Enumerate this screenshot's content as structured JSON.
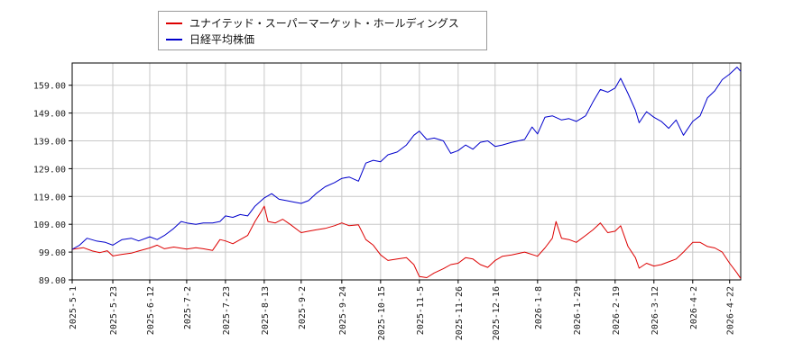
{
  "chart_data": {
    "type": "line",
    "title": "",
    "xlabel": "",
    "ylabel": "",
    "x_ticks": [
      "2025-5-1",
      "2025-5-23",
      "2025-6-12",
      "2025-7-2",
      "2025-7-23",
      "2025-8-13",
      "2025-9-2",
      "2025-9-24",
      "2025-10-15",
      "2025-11-5",
      "2025-11-26",
      "2025-12-16",
      "2026-1-8",
      "2026-1-29",
      "2026-2-19",
      "2026-3-12",
      "2026-4-2",
      "2026-4-22"
    ],
    "y_ticks": [
      "89.00",
      "99.00",
      "109.00",
      "119.00",
      "129.00",
      "139.00",
      "149.00",
      "159.00"
    ],
    "ylim": [
      89,
      167
    ],
    "grid": true,
    "legend_position": "top-left",
    "series": [
      {
        "name": "ユナイテッド・スーパーマーケット・ホールディングス",
        "color": "#dd0000",
        "values": [
          [
            "2025-5-1",
            100
          ],
          [
            "2025-5-7",
            100.6
          ],
          [
            "2025-5-12",
            99.4
          ],
          [
            "2025-5-16",
            98.8
          ],
          [
            "2025-5-20",
            99.5
          ],
          [
            "2025-5-23",
            97.6
          ],
          [
            "2025-5-28",
            98.2
          ],
          [
            "2025-6-2",
            98.6
          ],
          [
            "2025-6-6",
            99.4
          ],
          [
            "2025-6-12",
            100.5
          ],
          [
            "2025-6-16",
            101.5
          ],
          [
            "2025-6-20",
            100.2
          ],
          [
            "2025-6-25",
            100.8
          ],
          [
            "2025-7-2",
            100.1
          ],
          [
            "2025-7-7",
            100.6
          ],
          [
            "2025-7-11",
            100.2
          ],
          [
            "2025-7-16",
            99.6
          ],
          [
            "2025-7-20",
            103.5
          ],
          [
            "2025-7-23",
            103
          ],
          [
            "2025-7-27",
            102
          ],
          [
            "2025-7-31",
            103.5
          ],
          [
            "2025-8-4",
            105
          ],
          [
            "2025-8-8",
            110
          ],
          [
            "2025-8-11",
            113.2
          ],
          [
            "2025-8-13",
            115.5
          ],
          [
            "2025-8-15",
            110
          ],
          [
            "2025-8-19",
            109.5
          ],
          [
            "2025-8-23",
            110.8
          ],
          [
            "2025-8-27",
            109
          ],
          [
            "2025-9-2",
            106
          ],
          [
            "2025-9-6",
            106.5
          ],
          [
            "2025-9-10",
            107
          ],
          [
            "2025-9-15",
            107.5
          ],
          [
            "2025-9-20",
            108.5
          ],
          [
            "2025-9-24",
            109.5
          ],
          [
            "2025-9-28",
            108.5
          ],
          [
            "2025-10-3",
            108.8
          ],
          [
            "2025-10-7",
            103.5
          ],
          [
            "2025-10-11",
            101.5
          ],
          [
            "2025-10-15",
            98
          ],
          [
            "2025-10-19",
            96
          ],
          [
            "2025-10-24",
            96.5
          ],
          [
            "2025-10-29",
            97
          ],
          [
            "2025-11-2",
            94.5
          ],
          [
            "2025-11-5",
            90.2
          ],
          [
            "2025-11-9",
            89.8
          ],
          [
            "2025-11-13",
            91.5
          ],
          [
            "2025-11-18",
            93
          ],
          [
            "2025-11-22",
            94.5
          ],
          [
            "2025-11-26",
            95
          ],
          [
            "2025-11-30",
            97
          ],
          [
            "2025-12-4",
            96.5
          ],
          [
            "2025-12-8",
            94.5
          ],
          [
            "2025-12-12",
            93.5
          ],
          [
            "2025-12-16",
            96
          ],
          [
            "2025-12-20",
            97.5
          ],
          [
            "2025-12-25",
            98
          ],
          [
            "2026-1-1",
            99
          ],
          [
            "2026-1-8",
            97.5
          ],
          [
            "2026-1-12",
            100.5
          ],
          [
            "2026-1-16",
            104
          ],
          [
            "2026-1-18",
            110
          ],
          [
            "2026-1-21",
            104
          ],
          [
            "2026-1-25",
            103.5
          ],
          [
            "2026-1-29",
            102.5
          ],
          [
            "2026-2-3",
            105
          ],
          [
            "2026-2-7",
            107
          ],
          [
            "2026-2-11",
            109.5
          ],
          [
            "2026-2-15",
            106
          ],
          [
            "2026-2-19",
            106.5
          ],
          [
            "2026-2-22",
            108.5
          ],
          [
            "2026-2-26",
            101
          ],
          [
            "2026-3-2",
            97
          ],
          [
            "2026-3-4",
            93.2
          ],
          [
            "2026-3-8",
            95
          ],
          [
            "2026-3-12",
            94
          ],
          [
            "2026-3-16",
            94.5
          ],
          [
            "2026-3-20",
            95.5
          ],
          [
            "2026-3-24",
            96.5
          ],
          [
            "2026-3-28",
            99
          ],
          [
            "2026-4-2",
            102.5
          ],
          [
            "2026-4-6",
            102.5
          ],
          [
            "2026-4-10",
            101
          ],
          [
            "2026-4-14",
            100.5
          ],
          [
            "2026-4-18",
            99
          ],
          [
            "2026-4-22",
            95
          ],
          [
            "2026-4-26",
            91.5
          ],
          [
            "2026-4-28",
            89.5
          ]
        ]
      },
      {
        "name": "日経平均株価",
        "color": "#0000cc",
        "values": [
          [
            "2025-5-1",
            100
          ],
          [
            "2025-5-5",
            101.5
          ],
          [
            "2025-5-9",
            104
          ],
          [
            "2025-5-14",
            103
          ],
          [
            "2025-5-19",
            102.5
          ],
          [
            "2025-5-23",
            101.5
          ],
          [
            "2025-5-28",
            103.5
          ],
          [
            "2025-6-2",
            104
          ],
          [
            "2025-6-6",
            103
          ],
          [
            "2025-6-12",
            104.5
          ],
          [
            "2025-6-16",
            103.5
          ],
          [
            "2025-6-20",
            105
          ],
          [
            "2025-6-25",
            107.5
          ],
          [
            "2025-6-29",
            110
          ],
          [
            "2025-7-2",
            109.5
          ],
          [
            "2025-7-7",
            109
          ],
          [
            "2025-7-11",
            109.5
          ],
          [
            "2025-7-16",
            109.5
          ],
          [
            "2025-7-20",
            110
          ],
          [
            "2025-7-23",
            112
          ],
          [
            "2025-7-27",
            111.5
          ],
          [
            "2025-7-31",
            112.5
          ],
          [
            "2025-8-4",
            112
          ],
          [
            "2025-8-8",
            115.5
          ],
          [
            "2025-8-13",
            118.5
          ],
          [
            "2025-8-17",
            120
          ],
          [
            "2025-8-21",
            118
          ],
          [
            "2025-8-25",
            117.5
          ],
          [
            "2025-8-29",
            117
          ],
          [
            "2025-9-2",
            116.5
          ],
          [
            "2025-9-6",
            117.5
          ],
          [
            "2025-9-10",
            120
          ],
          [
            "2025-9-15",
            122.5
          ],
          [
            "2025-9-20",
            124
          ],
          [
            "2025-9-24",
            125.5
          ],
          [
            "2025-9-28",
            126
          ],
          [
            "2025-10-3",
            124.5
          ],
          [
            "2025-10-7",
            131
          ],
          [
            "2025-10-11",
            132
          ],
          [
            "2025-10-15",
            131.5
          ],
          [
            "2025-10-19",
            134
          ],
          [
            "2025-10-24",
            135
          ],
          [
            "2025-10-29",
            137.5
          ],
          [
            "2025-11-2",
            141
          ],
          [
            "2025-11-5",
            142.5
          ],
          [
            "2025-11-9",
            139.5
          ],
          [
            "2025-11-13",
            140
          ],
          [
            "2025-11-18",
            139
          ],
          [
            "2025-11-22",
            134.5
          ],
          [
            "2025-11-26",
            135.5
          ],
          [
            "2025-11-30",
            137.5
          ],
          [
            "2025-12-4",
            136
          ],
          [
            "2025-12-8",
            138.5
          ],
          [
            "2025-12-12",
            139
          ],
          [
            "2025-12-16",
            137
          ],
          [
            "2025-12-20",
            137.5
          ],
          [
            "2025-12-25",
            138.5
          ],
          [
            "2026-1-1",
            139.5
          ],
          [
            "2026-1-5",
            144
          ],
          [
            "2026-1-8",
            141.5
          ],
          [
            "2026-1-12",
            147.5
          ],
          [
            "2026-1-16",
            148
          ],
          [
            "2026-1-21",
            146.5
          ],
          [
            "2026-1-25",
            147
          ],
          [
            "2026-1-29",
            146
          ],
          [
            "2026-2-3",
            148
          ],
          [
            "2026-2-7",
            153
          ],
          [
            "2026-2-11",
            157.5
          ],
          [
            "2026-2-15",
            156.5
          ],
          [
            "2026-2-19",
            158
          ],
          [
            "2026-2-22",
            161.5
          ],
          [
            "2026-2-26",
            156
          ],
          [
            "2026-3-2",
            150
          ],
          [
            "2026-3-4",
            145.5
          ],
          [
            "2026-3-8",
            149.5
          ],
          [
            "2026-3-12",
            147.5
          ],
          [
            "2026-3-16",
            146
          ],
          [
            "2026-3-20",
            143.5
          ],
          [
            "2026-3-24",
            146.5
          ],
          [
            "2026-3-28",
            141
          ],
          [
            "2026-4-2",
            146
          ],
          [
            "2026-4-6",
            148
          ],
          [
            "2026-4-10",
            154.5
          ],
          [
            "2026-4-14",
            157
          ],
          [
            "2026-4-18",
            161
          ],
          [
            "2026-4-22",
            163
          ],
          [
            "2026-4-26",
            165.5
          ],
          [
            "2026-4-28",
            164
          ]
        ]
      }
    ]
  }
}
